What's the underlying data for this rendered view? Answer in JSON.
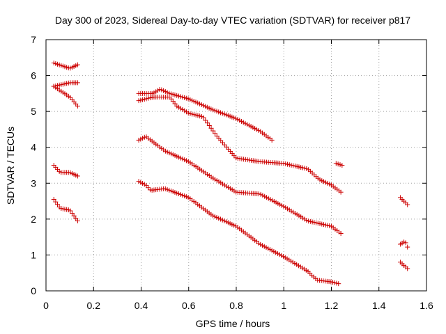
{
  "chart_data": {
    "type": "scatter",
    "title": "Day 300 of 2023, Sidereal Day-to-day VTEC variation (SDTVAR) for receiver p817",
    "xlabel": "GPS time / hours",
    "ylabel": "SDTVAR / TECUs",
    "xlim": [
      0,
      1.6
    ],
    "ylim": [
      0,
      7
    ],
    "xticks": [
      0,
      0.2,
      0.4,
      0.6,
      0.8,
      1.0,
      1.2,
      1.4,
      1.6
    ],
    "xtick_labels": [
      "0",
      "0.2",
      "0.4",
      "0.6",
      "0.8",
      "1",
      "1.2",
      "1.4",
      "1.6"
    ],
    "yticks": [
      0,
      1,
      2,
      3,
      4,
      5,
      6,
      7
    ],
    "ytick_labels": [
      "0",
      "1",
      "2",
      "3",
      "4",
      "5",
      "6",
      "7"
    ],
    "grid": true,
    "marker": "+",
    "marker_color": "#cc0000",
    "segments": [
      {
        "x": [
          0.033,
          0.1,
          0.133
        ],
        "y": [
          6.35,
          6.2,
          6.3
        ]
      },
      {
        "x": [
          0.033,
          0.1,
          0.133
        ],
        "y": [
          5.7,
          5.8,
          5.8
        ]
      },
      {
        "x": [
          0.033,
          0.1,
          0.133
        ],
        "y": [
          5.7,
          5.4,
          5.15
        ]
      },
      {
        "x": [
          0.033,
          0.06,
          0.1,
          0.133
        ],
        "y": [
          3.5,
          3.3,
          3.3,
          3.2
        ]
      },
      {
        "x": [
          0.033,
          0.06,
          0.1,
          0.133
        ],
        "y": [
          2.55,
          2.3,
          2.25,
          1.95
        ]
      },
      {
        "x": [
          0.39,
          0.45,
          0.48,
          0.52,
          0.6,
          0.7,
          0.8,
          0.9,
          0.95
        ],
        "y": [
          5.5,
          5.5,
          5.62,
          5.5,
          5.35,
          5.05,
          4.8,
          4.45,
          4.2
        ]
      },
      {
        "x": [
          0.39,
          0.45,
          0.52,
          0.55,
          0.6,
          0.66,
          0.72,
          0.8,
          0.9,
          1.0,
          1.1,
          1.15,
          1.2,
          1.24
        ],
        "y": [
          5.3,
          5.4,
          5.4,
          5.15,
          4.95,
          4.85,
          4.3,
          3.7,
          3.6,
          3.55,
          3.4,
          3.1,
          2.95,
          2.75
        ]
      },
      {
        "x": [
          0.39,
          0.42,
          0.5,
          0.6,
          0.7,
          0.8,
          0.9,
          1.0,
          1.1,
          1.2,
          1.24
        ],
        "y": [
          4.2,
          4.3,
          3.9,
          3.6,
          3.15,
          2.75,
          2.7,
          2.35,
          1.95,
          1.8,
          1.6
        ]
      },
      {
        "x": [
          0.39,
          0.42,
          0.44,
          0.5,
          0.6,
          0.7,
          0.8,
          0.9,
          1.0,
          1.1,
          1.14,
          1.2,
          1.23
        ],
        "y": [
          3.05,
          2.95,
          2.8,
          2.85,
          2.6,
          2.1,
          1.8,
          1.3,
          0.95,
          0.55,
          0.3,
          0.25,
          0.2
        ]
      },
      {
        "x": [
          1.22,
          1.245
        ],
        "y": [
          3.55,
          3.5
        ]
      },
      {
        "x": [
          1.49,
          1.52
        ],
        "y": [
          2.6,
          2.4
        ]
      },
      {
        "x": [
          1.49,
          1.51,
          1.52
        ],
        "y": [
          1.3,
          1.38,
          1.22
        ]
      },
      {
        "x": [
          1.49,
          1.51,
          1.52
        ],
        "y": [
          0.8,
          0.68,
          0.62
        ]
      }
    ]
  }
}
